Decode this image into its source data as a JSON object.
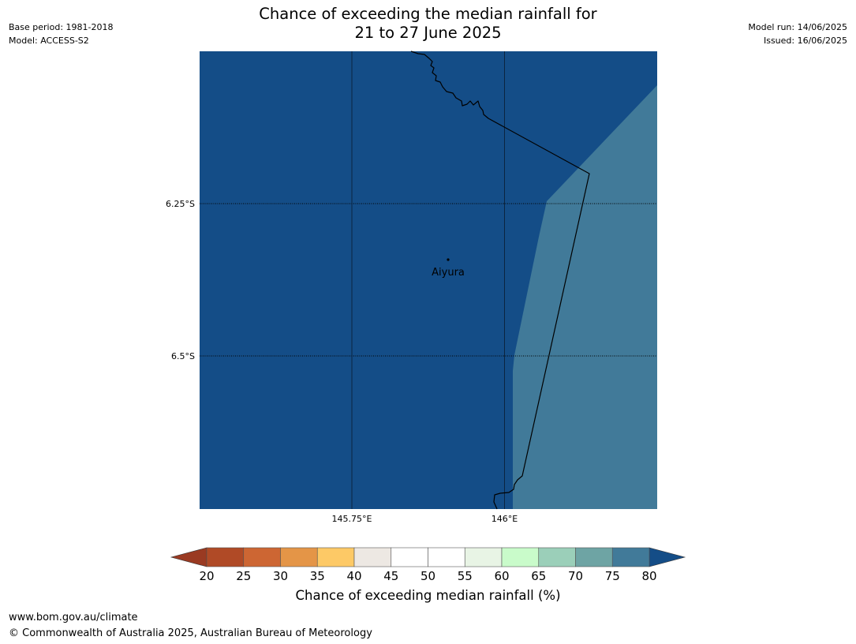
{
  "title": {
    "line1": "Chance of exceeding the median rainfall for",
    "line2": "21 to 27 June 2025"
  },
  "meta": {
    "base_period": "Base period: 1981-2018",
    "model": "Model: ACCESS-S2",
    "model_run": "Model run: 14/06/2025",
    "issued": "Issued: 16/06/2025"
  },
  "map": {
    "lat_labels": [
      "6.25°S",
      "6.5°S"
    ],
    "lon_labels": [
      "145.75°E",
      "146°E"
    ],
    "place": "Aiyura",
    "colors": {
      "dark_blue": "#144d87",
      "mid_blue": "#417a99"
    }
  },
  "colorbar": {
    "title": "Chance of exceeding median rainfall (%)",
    "labels": [
      "20",
      "25",
      "30",
      "35",
      "40",
      "45",
      "50",
      "55",
      "60",
      "65",
      "70",
      "75",
      "80"
    ],
    "colors": [
      "#b04a26",
      "#cd6633",
      "#e49547",
      "#fdc966",
      "#ede8e3",
      "#ffffff",
      "#ffffff",
      "#e8f4e5",
      "#c9fbca",
      "#9bcfb9",
      "#6ea4a4",
      "#417a99"
    ],
    "under_color": "#9a3a22",
    "over_color": "#144d87"
  },
  "footer": {
    "url": "www.bom.gov.au/climate",
    "copyright": "© Commonwealth of Australia 2025, Australian Bureau of Meteorology"
  }
}
